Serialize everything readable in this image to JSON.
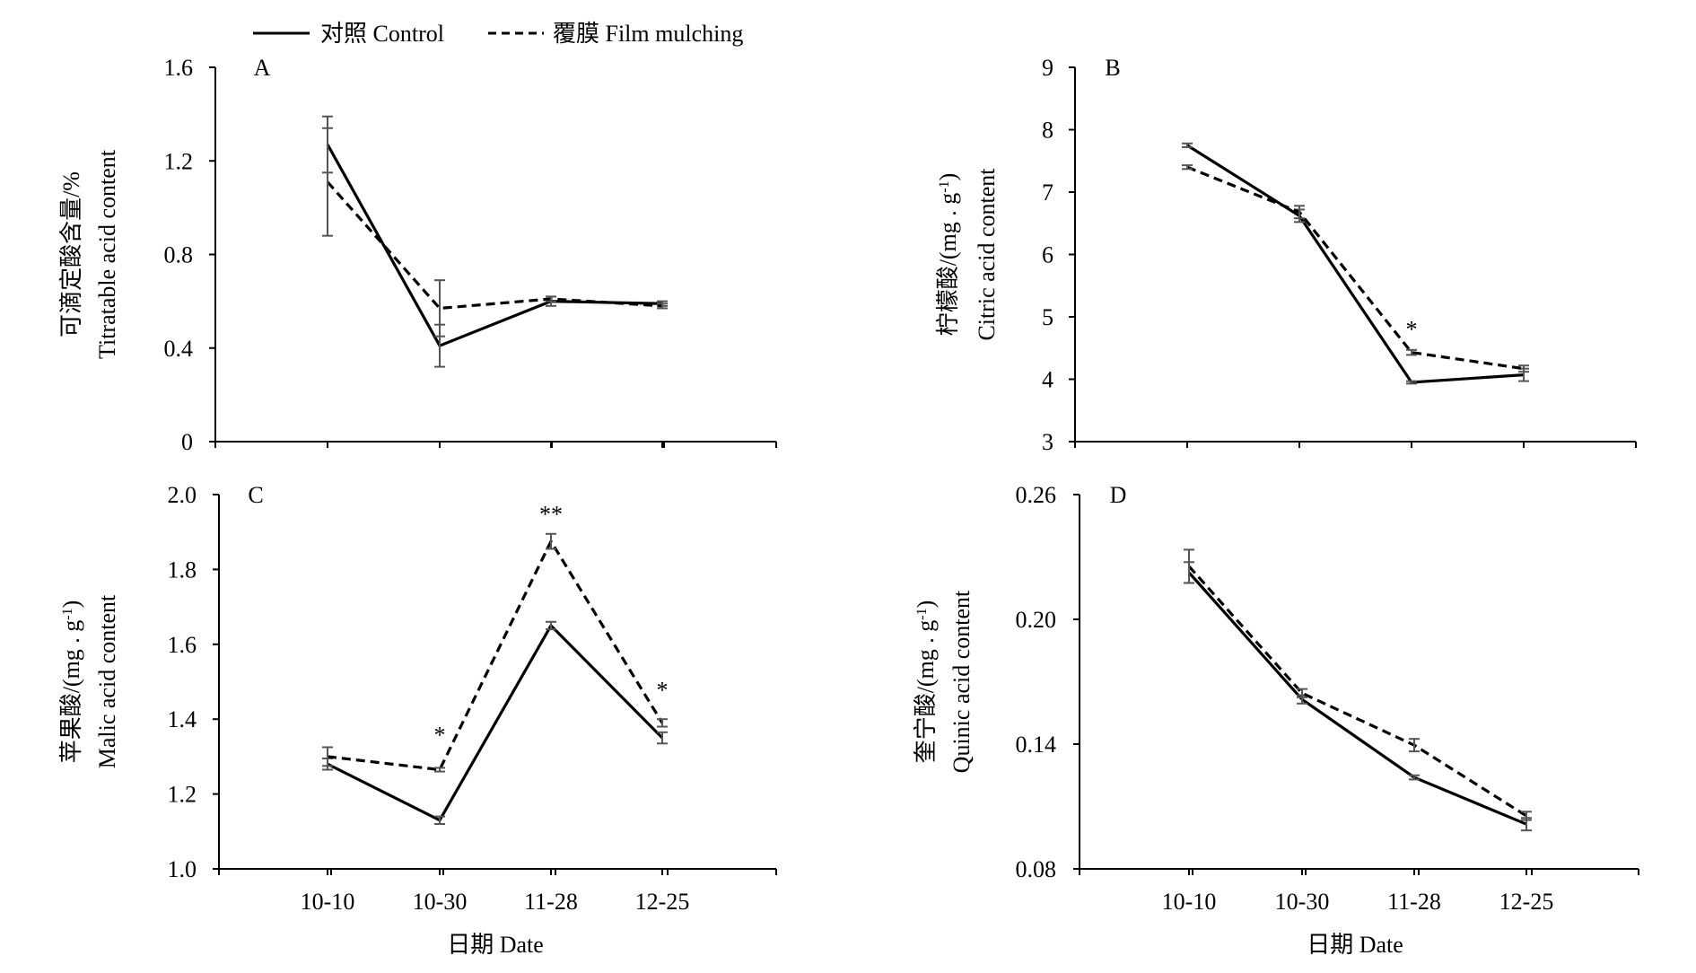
{
  "legend": {
    "control_label": "对照 Control",
    "film_label": "覆膜 Film mulching"
  },
  "chart_data": [
    {
      "type": "line",
      "panel_label": "A",
      "ylabel_cn": "可滴定酸含量/%",
      "ylabel_en": "Titratable acid content",
      "categories": [
        "10-10",
        "10-30",
        "11-28",
        "12-25"
      ],
      "ylim": [
        0,
        1.6
      ],
      "yticks": [
        "0",
        "0.4",
        "0.8",
        "1.2",
        "1.6"
      ],
      "series": [
        {
          "name": "对照 Control",
          "style": "solid",
          "values": [
            1.27,
            0.41,
            0.6,
            0.59
          ],
          "errors": [
            0.12,
            0.09,
            0.02,
            0.01
          ]
        },
        {
          "name": "覆膜 Film mulching",
          "style": "dashed",
          "values": [
            1.11,
            0.57,
            0.61,
            0.58
          ],
          "errors": [
            0.23,
            0.12,
            0.01,
            0.01
          ]
        }
      ],
      "annotations": []
    },
    {
      "type": "line",
      "panel_label": "B",
      "ylabel_cn": "柠檬酸/(mg . g",
      "ylabel_sup": "-1",
      "ylabel_end": ")",
      "ylabel_en": "Citric acid content",
      "categories": [
        "10-10",
        "10-30",
        "11-28",
        "12-25"
      ],
      "ylim": [
        3,
        9
      ],
      "yticks": [
        "3",
        "4",
        "5",
        "6",
        "7",
        "8",
        "9"
      ],
      "series": [
        {
          "name": "对照 Control",
          "style": "solid",
          "values": [
            7.75,
            6.62,
            3.95,
            4.07
          ],
          "errors": [
            0.03,
            0.1,
            0.02,
            0.1
          ]
        },
        {
          "name": "覆膜 Film mulching",
          "style": "dashed",
          "values": [
            7.4,
            6.68,
            4.43,
            4.17
          ],
          "errors": [
            0.03,
            0.1,
            0.04,
            0.05
          ]
        }
      ],
      "annotations": [
        {
          "category_index": 2,
          "y": 4.88,
          "text": "*"
        }
      ]
    },
    {
      "type": "line",
      "panel_label": "C",
      "ylabel_cn": "苹果酸/(mg . g",
      "ylabel_sup": "-1",
      "ylabel_end": ")",
      "ylabel_en": "Malic acid content",
      "categories": [
        "10-10",
        "10-30",
        "11-28",
        "12-25"
      ],
      "ylim": [
        1.0,
        2.0
      ],
      "yticks": [
        "1.0",
        "1.2",
        "1.4",
        "1.6",
        "1.8",
        "2.0"
      ],
      "series": [
        {
          "name": "对照 Control",
          "style": "solid",
          "values": [
            1.28,
            1.13,
            1.65,
            1.35
          ],
          "errors": [
            0.015,
            0.01,
            0.01,
            0.015
          ]
        },
        {
          "name": "覆膜 Film mulching",
          "style": "dashed",
          "values": [
            1.3,
            1.265,
            1.875,
            1.39
          ],
          "errors": [
            0.025,
            0.005,
            0.02,
            0.01
          ]
        }
      ],
      "annotations": [
        {
          "category_index": 1,
          "y": 1.37,
          "text": "*"
        },
        {
          "category_index": 2,
          "y": 1.96,
          "text": "**"
        },
        {
          "category_index": 3,
          "y": 1.49,
          "text": "*"
        }
      ]
    },
    {
      "type": "line",
      "panel_label": "D",
      "ylabel_cn": "奎宁酸/(mg . g",
      "ylabel_sup": "-1",
      "ylabel_end": ")",
      "ylabel_en": "Quinic acid content",
      "categories": [
        "10-10",
        "10-30",
        "11-28",
        "12-25"
      ],
      "ylim": [
        0.08,
        0.26
      ],
      "yticks": [
        "0.08",
        "0.14",
        "0.20",
        "0.26"
      ],
      "series": [
        {
          "name": "对照 Control",
          "style": "solid",
          "values": [
            0.2225,
            0.1615,
            0.124,
            0.1015
          ],
          "errors": [
            0.005,
            0.002,
            0.001,
            0.003
          ]
        },
        {
          "name": "覆膜 Film mulching",
          "style": "dashed",
          "values": [
            0.2255,
            0.1645,
            0.1395,
            0.1055
          ],
          "errors": [
            0.008,
            0.002,
            0.003,
            0.002
          ]
        }
      ],
      "annotations": []
    }
  ],
  "xaxis": {
    "label": "日期 Date"
  }
}
